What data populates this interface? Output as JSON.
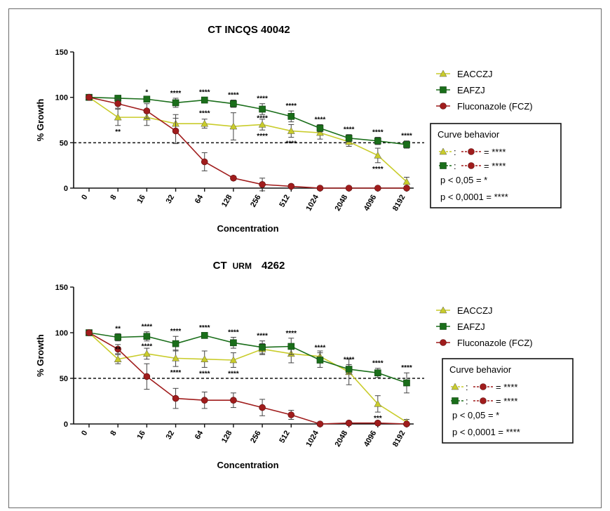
{
  "colors": {
    "EACCZJ": "#c9cc2a",
    "EAFZJ": "#1a6e1a",
    "FCZ": "#a01c1c"
  },
  "chart_data": [
    {
      "type": "line",
      "title": "CT INCQS 40042",
      "xlabel": "Concentration",
      "ylabel": "% Growth",
      "ylim": [
        0,
        150
      ],
      "yticks": [
        0,
        50,
        100,
        150
      ],
      "categories": [
        "0",
        "8",
        "16",
        "32",
        "64",
        "128",
        "256",
        "512",
        "1024",
        "2048",
        "4096",
        "8192"
      ],
      "reference_line": 50,
      "series": [
        {
          "name": "EACCZJ",
          "marker": "triangle",
          "values": [
            100,
            78,
            78,
            71,
            71,
            68,
            70,
            63,
            61,
            51,
            36,
            7
          ],
          "err": [
            0,
            9,
            9,
            10,
            5,
            15,
            6,
            7,
            7,
            5,
            8,
            5
          ]
        },
        {
          "name": "EAFZJ",
          "marker": "square",
          "values": [
            100,
            99,
            98,
            94,
            97,
            93,
            87,
            79,
            66,
            55,
            52,
            48
          ],
          "err": [
            0,
            2,
            2,
            5,
            3,
            4,
            6,
            6,
            4,
            4,
            4,
            4
          ]
        },
        {
          "name": "Fluconazole (FCZ)",
          "marker": "circle",
          "values": [
            100,
            93,
            85,
            63,
            29,
            11,
            4,
            2,
            0,
            0,
            0,
            0
          ],
          "err": [
            0,
            5,
            8,
            14,
            10,
            2,
            7,
            2,
            0,
            0,
            0,
            0
          ]
        }
      ],
      "annotations": [
        {
          "cat": "8",
          "text": "**",
          "pos": "below"
        },
        {
          "cat": "16",
          "text": "*",
          "pos": "above"
        },
        {
          "cat": "32",
          "text": "****",
          "pos": "above"
        },
        {
          "cat": "64",
          "text": "****",
          "pos": "above"
        },
        {
          "cat": "64",
          "text": "****",
          "pos": "mid"
        },
        {
          "cat": "128",
          "text": "****",
          "pos": "above"
        },
        {
          "cat": "256",
          "text": "****",
          "pos": "above"
        },
        {
          "cat": "256",
          "text": "****",
          "pos": "mid"
        },
        {
          "cat": "256",
          "text": "****",
          "pos": "below"
        },
        {
          "cat": "512",
          "text": "****",
          "pos": "above"
        },
        {
          "cat": "512",
          "text": "****",
          "pos": "below"
        },
        {
          "cat": "1024",
          "text": "****",
          "pos": "above"
        },
        {
          "cat": "2048",
          "text": "****",
          "pos": "above"
        },
        {
          "cat": "4096",
          "text": "****",
          "pos": "above"
        },
        {
          "cat": "4096",
          "text": "****",
          "pos": "below"
        },
        {
          "cat": "8192",
          "text": "****",
          "pos": "above"
        }
      ],
      "legend": [
        "EACCZJ",
        "EAFZJ",
        "Fluconazole (FCZ)"
      ],
      "curve_box": {
        "title": "Curve behavior",
        "rows": [
          ": ",
          ": "
        ],
        "eq": "= ****",
        "p1": "p < 0,05 = *",
        "p2": "p < 0,0001 = ****"
      }
    },
    {
      "type": "line",
      "title": "CT URM 4262",
      "title_parts": [
        "CT",
        "URM",
        "4262"
      ],
      "xlabel": "Concentration",
      "ylabel": "% Growth",
      "ylim": [
        0,
        150
      ],
      "yticks": [
        0,
        50,
        100,
        150
      ],
      "categories": [
        "0",
        "8",
        "16",
        "32",
        "64",
        "128",
        "256",
        "512",
        "1024",
        "2048",
        "4096",
        "8192"
      ],
      "reference_line": 50,
      "series": [
        {
          "name": "EACCZJ",
          "marker": "triangle",
          "values": [
            100,
            71,
            77,
            72,
            71,
            70,
            82,
            77,
            74,
            57,
            22,
            2
          ],
          "err": [
            0,
            5,
            6,
            9,
            9,
            8,
            6,
            10,
            6,
            14,
            9,
            3
          ]
        },
        {
          "name": "EAFZJ",
          "marker": "square",
          "values": [
            100,
            95,
            96,
            88,
            97,
            89,
            84,
            85,
            70,
            60,
            56,
            45
          ],
          "err": [
            0,
            4,
            5,
            8,
            3,
            6,
            7,
            9,
            8,
            5,
            5,
            11
          ]
        },
        {
          "name": "Fluconazole (FCZ)",
          "marker": "circle",
          "values": [
            100,
            82,
            52,
            28,
            26,
            26,
            18,
            10,
            0,
            1,
            1,
            0
          ],
          "err": [
            0,
            5,
            14,
            11,
            9,
            8,
            9,
            5,
            0,
            0,
            0,
            0
          ]
        }
      ],
      "annotations": [
        {
          "cat": "8",
          "text": "**",
          "pos": "above"
        },
        {
          "cat": "8",
          "text": "**",
          "pos": "mid"
        },
        {
          "cat": "16",
          "text": "****",
          "pos": "above"
        },
        {
          "cat": "16",
          "text": "****",
          "pos": "mid"
        },
        {
          "cat": "32",
          "text": "****",
          "pos": "above"
        },
        {
          "cat": "32",
          "text": "****",
          "pos": "below"
        },
        {
          "cat": "64",
          "text": "****",
          "pos": "above"
        },
        {
          "cat": "64",
          "text": "****",
          "pos": "below"
        },
        {
          "cat": "128",
          "text": "****",
          "pos": "above"
        },
        {
          "cat": "128",
          "text": "****",
          "pos": "below"
        },
        {
          "cat": "256",
          "text": "****",
          "pos": "above"
        },
        {
          "cat": "512",
          "text": "****",
          "pos": "above"
        },
        {
          "cat": "1024",
          "text": "****",
          "pos": "above"
        },
        {
          "cat": "2048",
          "text": "****",
          "pos": "above"
        },
        {
          "cat": "4096",
          "text": "****",
          "pos": "above"
        },
        {
          "cat": "4096",
          "text": "***",
          "pos": "below"
        },
        {
          "cat": "8192",
          "text": "****",
          "pos": "above"
        }
      ],
      "legend": [
        "EACCZJ",
        "EAFZJ",
        "Fluconazole (FCZ)"
      ],
      "curve_box": {
        "title": "Curve behavior",
        "rows": [
          ": ",
          ": "
        ],
        "eq": "= ****",
        "p1": "p < 0,05 = *",
        "p2": "p < 0,0001 = ****"
      }
    }
  ]
}
